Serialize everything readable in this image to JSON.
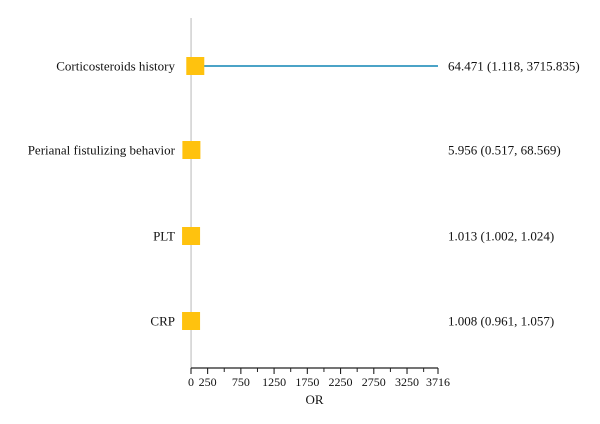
{
  "chart_data": {
    "type": "forest",
    "xlabel": "OR",
    "xlim": [
      0,
      3716
    ],
    "ticks": [
      0,
      250,
      750,
      1250,
      1750,
      2250,
      2750,
      3250,
      3716
    ],
    "tick_labels": [
      "0",
      "250",
      "750",
      "1250",
      "1750",
      "2250",
      "2750",
      "3250",
      "3716"
    ],
    "reference_line": 1,
    "rows": [
      {
        "name": "Corticosteroids history",
        "or": 64.471,
        "lower": 1.118,
        "upper": 3715.835,
        "label": "64.471 (1.118, 3715.835)"
      },
      {
        "name": "Perianal fistulizing behavior",
        "or": 5.956,
        "lower": 0.517,
        "upper": 68.569,
        "label": "5.956 (0.517, 68.569)"
      },
      {
        "name": "PLT",
        "or": 1.013,
        "lower": 1.002,
        "upper": 1.024,
        "label": "1.013 (1.002, 1.024)"
      },
      {
        "name": "CRP",
        "or": 1.008,
        "lower": 0.961,
        "upper": 1.057,
        "label": "1.008 (0.961, 1.057)"
      }
    ],
    "colors": {
      "marker": "#FFC20E",
      "ci_line": "#4BA3C7",
      "ref_line": "#C8C8C8",
      "axis": "#222222"
    }
  }
}
